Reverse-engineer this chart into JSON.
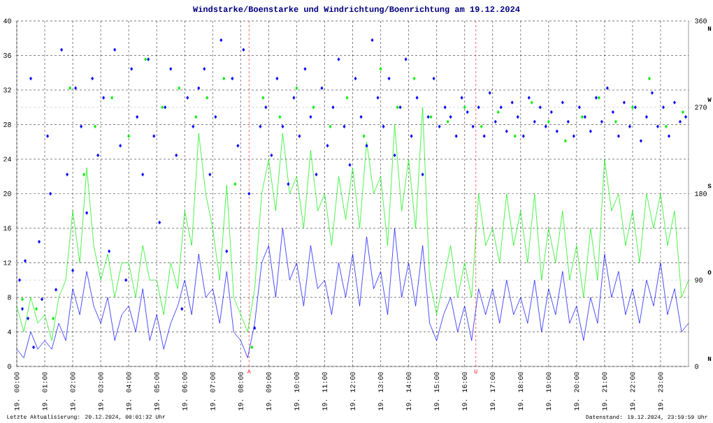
{
  "chart_data": {
    "type": "line",
    "title": "Windstarke/Boenstarke und Windrichtung/Boenrichtung am 19.12.2024",
    "annotations": [
      "Letzte Aktualisierung: 20.12.2024, 00:01:32 Uhr",
      "Datenstand: 19.12.2024, 23:59:59 Uhr",
      "N",
      "O",
      "S",
      "W",
      "N"
    ],
    "xlim": [
      "2024-12-19T00:00",
      "2024-12-20T00:00"
    ],
    "xticks": [
      {
        "value": "2024-12-19T00:00",
        "label": "19. 00:00"
      },
      {
        "value": "2024-12-19T01:00",
        "label": "19. 01:00"
      },
      {
        "value": "2024-12-19T02:00",
        "label": "19. 02:00"
      },
      {
        "value": "2024-12-19T03:00",
        "label": "19. 03:00"
      },
      {
        "value": "2024-12-19T04:00",
        "label": "19. 04:00"
      },
      {
        "value": "2024-12-19T05:00",
        "label": "19. 05:00"
      },
      {
        "value": "2024-12-19T06:00",
        "label": "19. 06:00"
      },
      {
        "value": "2024-12-19T07:00",
        "label": "19. 07:00"
      },
      {
        "value": "2024-12-19T08:00",
        "label": "19. 08:00"
      },
      {
        "value": "2024-12-19T09:00",
        "label": "19. 09:00"
      },
      {
        "value": "2024-12-19T10:00",
        "label": "19. 10:00"
      },
      {
        "value": "2024-12-19T11:00",
        "label": "19. 11:00"
      },
      {
        "value": "2024-12-19T12:00",
        "label": "19. 12:00"
      },
      {
        "value": "2024-12-19T13:00",
        "label": "19. 13:00"
      },
      {
        "value": "2024-12-19T14:00",
        "label": "19. 14:00"
      },
      {
        "value": "2024-12-19T15:00",
        "label": "19. 15:00"
      },
      {
        "value": "2024-12-19T16:00",
        "label": "19. 16:00"
      },
      {
        "value": "2024-12-19T17:00",
        "label": "19. 17:00"
      },
      {
        "value": "2024-12-19T18:00",
        "label": "19. 18:00"
      },
      {
        "value": "2024-12-19T19:00",
        "label": "19. 19:00"
      },
      {
        "value": "2024-12-19T20:00",
        "label": "19. 20:00"
      },
      {
        "value": "2024-12-19T21:00",
        "label": "19. 21:00"
      },
      {
        "value": "2024-12-19T22:00",
        "label": "19. 22:00"
      },
      {
        "value": "2024-12-19T23:00",
        "label": "19. 23:00"
      }
    ],
    "ylim": [
      0,
      40
    ],
    "yticks": [
      0,
      4,
      8,
      12,
      16,
      20,
      24,
      28,
      32,
      36,
      40
    ],
    "y2lim": [
      0,
      360
    ],
    "y2ticks": [
      0,
      90,
      180,
      270,
      360
    ],
    "grid": true,
    "ref_lines": [
      {
        "axis": "x",
        "value": "2024-12-19T08:18",
        "label": "A",
        "color": "#ff0000",
        "line_style": "dashed"
      },
      {
        "axis": "x",
        "value": "2024-12-19T16:24",
        "label": "U",
        "color": "#ff0000",
        "line_style": "dashed"
      }
    ],
    "series": [
      {
        "color": "#00ee00",
        "marker": "none",
        "x": [
          "2024-12-19T00:00",
          "2024-12-19T00:15",
          "2024-12-19T00:30",
          "2024-12-19T00:45",
          "2024-12-19T01:00",
          "2024-12-19T01:15",
          "2024-12-19T01:30",
          "2024-12-19T01:45",
          "2024-12-19T02:00",
          "2024-12-19T02:15",
          "2024-12-19T02:30",
          "2024-12-19T02:45",
          "2024-12-19T03:00",
          "2024-12-19T03:15",
          "2024-12-19T03:30",
          "2024-12-19T03:45",
          "2024-12-19T04:00",
          "2024-12-19T04:15",
          "2024-12-19T04:30",
          "2024-12-19T04:45",
          "2024-12-19T05:00",
          "2024-12-19T05:15",
          "2024-12-19T05:30",
          "2024-12-19T05:45",
          "2024-12-19T06:00",
          "2024-12-19T06:15",
          "2024-12-19T06:30",
          "2024-12-19T06:45",
          "2024-12-19T07:00",
          "2024-12-19T07:15",
          "2024-12-19T07:30",
          "2024-12-19T07:45",
          "2024-12-19T08:00",
          "2024-12-19T08:15",
          "2024-12-19T08:30",
          "2024-12-19T08:45",
          "2024-12-19T09:00",
          "2024-12-19T09:15",
          "2024-12-19T09:30",
          "2024-12-19T09:45",
          "2024-12-19T10:00",
          "2024-12-19T10:15",
          "2024-12-19T10:30",
          "2024-12-19T10:45",
          "2024-12-19T11:00",
          "2024-12-19T11:15",
          "2024-12-19T11:30",
          "2024-12-19T11:45",
          "2024-12-19T12:00",
          "2024-12-19T12:15",
          "2024-12-19T12:30",
          "2024-12-19T12:45",
          "2024-12-19T13:00",
          "2024-12-19T13:15",
          "2024-12-19T13:30",
          "2024-12-19T13:45",
          "2024-12-19T14:00",
          "2024-12-19T14:15",
          "2024-12-19T14:30",
          "2024-12-19T14:45",
          "2024-12-19T15:00",
          "2024-12-19T15:15",
          "2024-12-19T15:30",
          "2024-12-19T15:45",
          "2024-12-19T16:00",
          "2024-12-19T16:15",
          "2024-12-19T16:30",
          "2024-12-19T16:45",
          "2024-12-19T17:00",
          "2024-12-19T17:15",
          "2024-12-19T17:30",
          "2024-12-19T17:45",
          "2024-12-19T18:00",
          "2024-12-19T18:15",
          "2024-12-19T18:30",
          "2024-12-19T18:45",
          "2024-12-19T19:00",
          "2024-12-19T19:15",
          "2024-12-19T19:30",
          "2024-12-19T19:45",
          "2024-12-19T20:00",
          "2024-12-19T20:15",
          "2024-12-19T20:30",
          "2024-12-19T20:45",
          "2024-12-19T21:00",
          "2024-12-19T21:15",
          "2024-12-19T21:30",
          "2024-12-19T21:45",
          "2024-12-19T22:00",
          "2024-12-19T22:15",
          "2024-12-19T22:30",
          "2024-12-19T22:45",
          "2024-12-19T23:00",
          "2024-12-19T23:15",
          "2024-12-19T23:30",
          "2024-12-19T23:45",
          "2024-12-20T00:00"
        ],
        "values": [
          7,
          4,
          8,
          5,
          6,
          3,
          8,
          10,
          18,
          12,
          23,
          14,
          10,
          13,
          8,
          12,
          12,
          8,
          14,
          10,
          10,
          6,
          12,
          9,
          18,
          14,
          27,
          20,
          16,
          10,
          21,
          8,
          6,
          4,
          9,
          20,
          24,
          18,
          27,
          20,
          22,
          16,
          25,
          18,
          20,
          14,
          22,
          17,
          23,
          16,
          26,
          20,
          22,
          14,
          28,
          18,
          24,
          16,
          30,
          10,
          6,
          10,
          14,
          8,
          12,
          8,
          20,
          14,
          16,
          12,
          20,
          14,
          18,
          12,
          20,
          10,
          16,
          12,
          18,
          10,
          14,
          8,
          16,
          10,
          24,
          18,
          20,
          14,
          18,
          12,
          20,
          16,
          20,
          14,
          18,
          8,
          10
        ]
      },
      {
        "color": "#0000ff",
        "marker": "none",
        "x": [
          "2024-12-19T00:00",
          "2024-12-19T00:15",
          "2024-12-19T00:30",
          "2024-12-19T00:45",
          "2024-12-19T01:00",
          "2024-12-19T01:15",
          "2024-12-19T01:30",
          "2024-12-19T01:45",
          "2024-12-19T02:00",
          "2024-12-19T02:15",
          "2024-12-19T02:30",
          "2024-12-19T02:45",
          "2024-12-19T03:00",
          "2024-12-19T03:15",
          "2024-12-19T03:30",
          "2024-12-19T03:45",
          "2024-12-19T04:00",
          "2024-12-19T04:15",
          "2024-12-19T04:30",
          "2024-12-19T04:45",
          "2024-12-19T05:00",
          "2024-12-19T05:15",
          "2024-12-19T05:30",
          "2024-12-19T05:45",
          "2024-12-19T06:00",
          "2024-12-19T06:15",
          "2024-12-19T06:30",
          "2024-12-19T06:45",
          "2024-12-19T07:00",
          "2024-12-19T07:15",
          "2024-12-19T07:30",
          "2024-12-19T07:45",
          "2024-12-19T08:00",
          "2024-12-19T08:15",
          "2024-12-19T08:30",
          "2024-12-19T08:45",
          "2024-12-19T09:00",
          "2024-12-19T09:15",
          "2024-12-19T09:30",
          "2024-12-19T09:45",
          "2024-12-19T10:00",
          "2024-12-19T10:15",
          "2024-12-19T10:30",
          "2024-12-19T10:45",
          "2024-12-19T11:00",
          "2024-12-19T11:15",
          "2024-12-19T11:30",
          "2024-12-19T11:45",
          "2024-12-19T12:00",
          "2024-12-19T12:15",
          "2024-12-19T12:30",
          "2024-12-19T12:45",
          "2024-12-19T13:00",
          "2024-12-19T13:15",
          "2024-12-19T13:30",
          "2024-12-19T13:45",
          "2024-12-19T14:00",
          "2024-12-19T14:15",
          "2024-12-19T14:30",
          "2024-12-19T14:45",
          "2024-12-19T15:00",
          "2024-12-19T15:15",
          "2024-12-19T15:30",
          "2024-12-19T15:45",
          "2024-12-19T16:00",
          "2024-12-19T16:15",
          "2024-12-19T16:30",
          "2024-12-19T16:45",
          "2024-12-19T17:00",
          "2024-12-19T17:15",
          "2024-12-19T17:30",
          "2024-12-19T17:45",
          "2024-12-19T18:00",
          "2024-12-19T18:15",
          "2024-12-19T18:30",
          "2024-12-19T18:45",
          "2024-12-19T19:00",
          "2024-12-19T19:15",
          "2024-12-19T19:30",
          "2024-12-19T19:45",
          "2024-12-19T20:00",
          "2024-12-19T20:15",
          "2024-12-19T20:30",
          "2024-12-19T20:45",
          "2024-12-19T21:00",
          "2024-12-19T21:15",
          "2024-12-19T21:30",
          "2024-12-19T21:45",
          "2024-12-19T22:00",
          "2024-12-19T22:15",
          "2024-12-19T22:30",
          "2024-12-19T22:45",
          "2024-12-19T23:00",
          "2024-12-19T23:15",
          "2024-12-19T23:30",
          "2024-12-19T23:45",
          "2024-12-20T00:00"
        ],
        "values": [
          2,
          1,
          4,
          2,
          3,
          2,
          5,
          3,
          9,
          6,
          11,
          7,
          5,
          8,
          3,
          6,
          7,
          4,
          9,
          3,
          6,
          2,
          5,
          7,
          10,
          6,
          13,
          8,
          9,
          5,
          11,
          4,
          3,
          1,
          5,
          12,
          14,
          8,
          16,
          10,
          12,
          7,
          14,
          9,
          10,
          6,
          12,
          8,
          13,
          7,
          15,
          9,
          11,
          6,
          16,
          8,
          12,
          7,
          14,
          5,
          3,
          6,
          8,
          4,
          7,
          3,
          9,
          6,
          9,
          5,
          10,
          6,
          8,
          5,
          10,
          4,
          9,
          6,
          11,
          5,
          7,
          3,
          8,
          5,
          13,
          8,
          11,
          6,
          9,
          5,
          10,
          7,
          12,
          6,
          9,
          4,
          5
        ]
      },
      {
        "type": "scatter",
        "axis": "y2",
        "color": "#00ee00",
        "marker": "diamond",
        "x": [
          "2024-12-19T00:12",
          "2024-12-19T00:42",
          "2024-12-19T01:18",
          "2024-12-19T01:54",
          "2024-12-19T02:24",
          "2024-12-19T02:48",
          "2024-12-19T03:24",
          "2024-12-19T04:00",
          "2024-12-19T04:36",
          "2024-12-19T05:12",
          "2024-12-19T05:48",
          "2024-12-19T06:24",
          "2024-12-19T06:48",
          "2024-12-19T07:24",
          "2024-12-19T07:48",
          "2024-12-19T08:24",
          "2024-12-19T08:48",
          "2024-12-19T09:24",
          "2024-12-19T10:00",
          "2024-12-19T10:36",
          "2024-12-19T11:12",
          "2024-12-19T11:48",
          "2024-12-19T12:24",
          "2024-12-19T13:00",
          "2024-12-19T13:36",
          "2024-12-19T14:12",
          "2024-12-19T14:48",
          "2024-12-19T15:24",
          "2024-12-19T16:00",
          "2024-12-19T16:36",
          "2024-12-19T17:12",
          "2024-12-19T17:48",
          "2024-12-19T18:24",
          "2024-12-19T19:00",
          "2024-12-19T19:36",
          "2024-12-19T20:12",
          "2024-12-19T20:48",
          "2024-12-19T21:24",
          "2024-12-19T22:00",
          "2024-12-19T22:36",
          "2024-12-19T23:12",
          "2024-12-19T23:48"
        ],
        "values": [
          70,
          60,
          50,
          290,
          200,
          250,
          280,
          240,
          320,
          270,
          290,
          260,
          280,
          300,
          190,
          20,
          280,
          260,
          290,
          270,
          250,
          280,
          240,
          310,
          270,
          300,
          260,
          255,
          270,
          250,
          265,
          240,
          275,
          255,
          235,
          260,
          280,
          255,
          270,
          300,
          250,
          265
        ]
      },
      {
        "type": "scatter",
        "axis": "y2",
        "color": "#0000ff",
        "marker": "diamond",
        "x": [
          "2024-12-19T00:06",
          "2024-12-19T00:12",
          "2024-12-19T00:18",
          "2024-12-19T00:24",
          "2024-12-19T00:30",
          "2024-12-19T00:36",
          "2024-12-19T00:48",
          "2024-12-19T00:54",
          "2024-12-19T01:06",
          "2024-12-19T01:12",
          "2024-12-19T01:24",
          "2024-12-19T01:36",
          "2024-12-19T01:48",
          "2024-12-19T02:00",
          "2024-12-19T02:06",
          "2024-12-19T02:18",
          "2024-12-19T02:30",
          "2024-12-19T02:42",
          "2024-12-19T02:54",
          "2024-12-19T03:06",
          "2024-12-19T03:18",
          "2024-12-19T03:30",
          "2024-12-19T03:42",
          "2024-12-19T03:54",
          "2024-12-19T04:06",
          "2024-12-19T04:18",
          "2024-12-19T04:30",
          "2024-12-19T04:42",
          "2024-12-19T04:54",
          "2024-12-19T05:06",
          "2024-12-19T05:18",
          "2024-12-19T05:30",
          "2024-12-19T05:42",
          "2024-12-19T05:54",
          "2024-12-19T06:06",
          "2024-12-19T06:18",
          "2024-12-19T06:30",
          "2024-12-19T06:42",
          "2024-12-19T06:54",
          "2024-12-19T07:06",
          "2024-12-19T07:18",
          "2024-12-19T07:30",
          "2024-12-19T07:42",
          "2024-12-19T07:54",
          "2024-12-19T08:06",
          "2024-12-19T08:18",
          "2024-12-19T08:30",
          "2024-12-19T08:42",
          "2024-12-19T08:54",
          "2024-12-19T09:06",
          "2024-12-19T09:18",
          "2024-12-19T09:30",
          "2024-12-19T09:42",
          "2024-12-19T09:54",
          "2024-12-19T10:06",
          "2024-12-19T10:18",
          "2024-12-19T10:30",
          "2024-12-19T10:42",
          "2024-12-19T10:54",
          "2024-12-19T11:06",
          "2024-12-19T11:18",
          "2024-12-19T11:30",
          "2024-12-19T11:42",
          "2024-12-19T11:54",
          "2024-12-19T12:06",
          "2024-12-19T12:18",
          "2024-12-19T12:30",
          "2024-12-19T12:42",
          "2024-12-19T12:54",
          "2024-12-19T13:06",
          "2024-12-19T13:18",
          "2024-12-19T13:30",
          "2024-12-19T13:42",
          "2024-12-19T13:54",
          "2024-12-19T14:06",
          "2024-12-19T14:18",
          "2024-12-19T14:30",
          "2024-12-19T14:42",
          "2024-12-19T14:54",
          "2024-12-19T15:06",
          "2024-12-19T15:18",
          "2024-12-19T15:30",
          "2024-12-19T15:42",
          "2024-12-19T15:54",
          "2024-12-19T16:06",
          "2024-12-19T16:18",
          "2024-12-19T16:30",
          "2024-12-19T16:42",
          "2024-12-19T16:54",
          "2024-12-19T17:06",
          "2024-12-19T17:18",
          "2024-12-19T17:30",
          "2024-12-19T17:42",
          "2024-12-19T17:54",
          "2024-12-19T18:06",
          "2024-12-19T18:18",
          "2024-12-19T18:30",
          "2024-12-19T18:42",
          "2024-12-19T18:54",
          "2024-12-19T19:06",
          "2024-12-19T19:18",
          "2024-12-19T19:30",
          "2024-12-19T19:42",
          "2024-12-19T19:54",
          "2024-12-19T20:06",
          "2024-12-19T20:18",
          "2024-12-19T20:30",
          "2024-12-19T20:42",
          "2024-12-19T20:54",
          "2024-12-19T21:06",
          "2024-12-19T21:18",
          "2024-12-19T21:30",
          "2024-12-19T21:42",
          "2024-12-19T21:54",
          "2024-12-19T22:06",
          "2024-12-19T22:18",
          "2024-12-19T22:30",
          "2024-12-19T22:42",
          "2024-12-19T22:54",
          "2024-12-19T23:06",
          "2024-12-19T23:18",
          "2024-12-19T23:30",
          "2024-12-19T23:42",
          "2024-12-19T23:54"
        ],
        "values": [
          90,
          60,
          110,
          50,
          300,
          20,
          130,
          70,
          240,
          180,
          80,
          330,
          200,
          100,
          290,
          250,
          160,
          300,
          220,
          280,
          120,
          330,
          230,
          90,
          310,
          260,
          200,
          320,
          240,
          150,
          270,
          310,
          220,
          60,
          280,
          250,
          290,
          310,
          200,
          260,
          340,
          120,
          300,
          230,
          330,
          180,
          40,
          250,
          270,
          220,
          300,
          250,
          190,
          280,
          240,
          310,
          260,
          200,
          290,
          230,
          270,
          320,
          250,
          210,
          300,
          260,
          230,
          340,
          280,
          250,
          300,
          220,
          270,
          320,
          240,
          280,
          200,
          260,
          300,
          250,
          270,
          260,
          240,
          280,
          265,
          250,
          270,
          240,
          285,
          255,
          270,
          245,
          275,
          260,
          240,
          280,
          255,
          270,
          250,
          265,
          245,
          275,
          255,
          240,
          270,
          260,
          245,
          280,
          255,
          290,
          265,
          240,
          275,
          250,
          270,
          235,
          260,
          285,
          250,
          270,
          240,
          275,
          255,
          260
        ]
      }
    ]
  }
}
